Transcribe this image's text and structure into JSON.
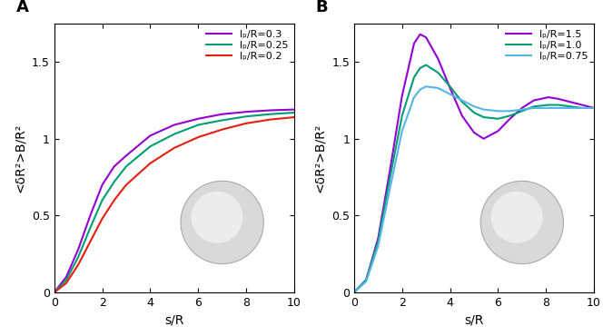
{
  "chart_data": [
    {
      "type": "line",
      "title": "A",
      "x_label": "s/R",
      "y_label": "<δR²>B/R²",
      "xlim": [
        0,
        10
      ],
      "xticks": [
        0,
        2,
        4,
        6,
        8,
        10
      ],
      "ylim": [
        0,
        1.75
      ],
      "yticks": [
        0,
        0.5,
        1,
        1.5
      ],
      "legend": "upper right",
      "x": [
        0,
        0.5,
        1,
        1.5,
        2,
        2.5,
        3,
        4,
        5,
        6,
        7,
        8,
        9,
        10
      ],
      "series": [
        {
          "name": "lₚ/R=0.3",
          "color": "#9400d3",
          "values": [
            0,
            0.1,
            0.28,
            0.5,
            0.7,
            0.82,
            0.89,
            1.02,
            1.09,
            1.13,
            1.16,
            1.175,
            1.185,
            1.19
          ]
        },
        {
          "name": "lₚ/R=0.25",
          "color": "#009e73",
          "values": [
            0,
            0.08,
            0.23,
            0.42,
            0.6,
            0.72,
            0.82,
            0.95,
            1.03,
            1.09,
            1.12,
            1.145,
            1.16,
            1.17
          ]
        },
        {
          "name": "lₚ/R=0.2",
          "color": "#e51e10",
          "values": [
            0,
            0.06,
            0.18,
            0.33,
            0.48,
            0.6,
            0.7,
            0.84,
            0.94,
            1.01,
            1.06,
            1.1,
            1.125,
            1.14
          ]
        }
      ]
    },
    {
      "type": "line",
      "title": "B",
      "x_label": "s/R",
      "y_label": "<δR²>B/R²",
      "xlim": [
        0,
        10
      ],
      "xticks": [
        0,
        2,
        4,
        6,
        8,
        10
      ],
      "ylim": [
        0,
        1.75
      ],
      "yticks": [
        0,
        0.5,
        1,
        1.5
      ],
      "legend": "upper right",
      "x": [
        0,
        0.5,
        1,
        1.5,
        2,
        2.5,
        2.75,
        3,
        3.5,
        4,
        4.5,
        5,
        5.4,
        6,
        6.5,
        7,
        7.5,
        8.1,
        8.5,
        9,
        9.5,
        10
      ],
      "series": [
        {
          "name": "lₚ/R=1.5",
          "color": "#9400d3",
          "values": [
            0,
            0.08,
            0.35,
            0.8,
            1.28,
            1.62,
            1.68,
            1.66,
            1.52,
            1.33,
            1.15,
            1.04,
            1.0,
            1.05,
            1.13,
            1.2,
            1.25,
            1.27,
            1.26,
            1.24,
            1.22,
            1.2
          ]
        },
        {
          "name": "lₚ/R=1.0",
          "color": "#009e73",
          "values": [
            0,
            0.08,
            0.33,
            0.75,
            1.15,
            1.4,
            1.46,
            1.48,
            1.43,
            1.34,
            1.24,
            1.17,
            1.14,
            1.13,
            1.15,
            1.18,
            1.21,
            1.22,
            1.22,
            1.21,
            1.2,
            1.2
          ]
        },
        {
          "name": "lₚ/R=0.75",
          "color": "#56b4e9",
          "values": [
            0,
            0.07,
            0.3,
            0.68,
            1.05,
            1.27,
            1.32,
            1.34,
            1.33,
            1.29,
            1.25,
            1.21,
            1.19,
            1.18,
            1.18,
            1.19,
            1.2,
            1.2,
            1.2,
            1.2,
            1.2,
            1.2
          ]
        }
      ]
    }
  ]
}
